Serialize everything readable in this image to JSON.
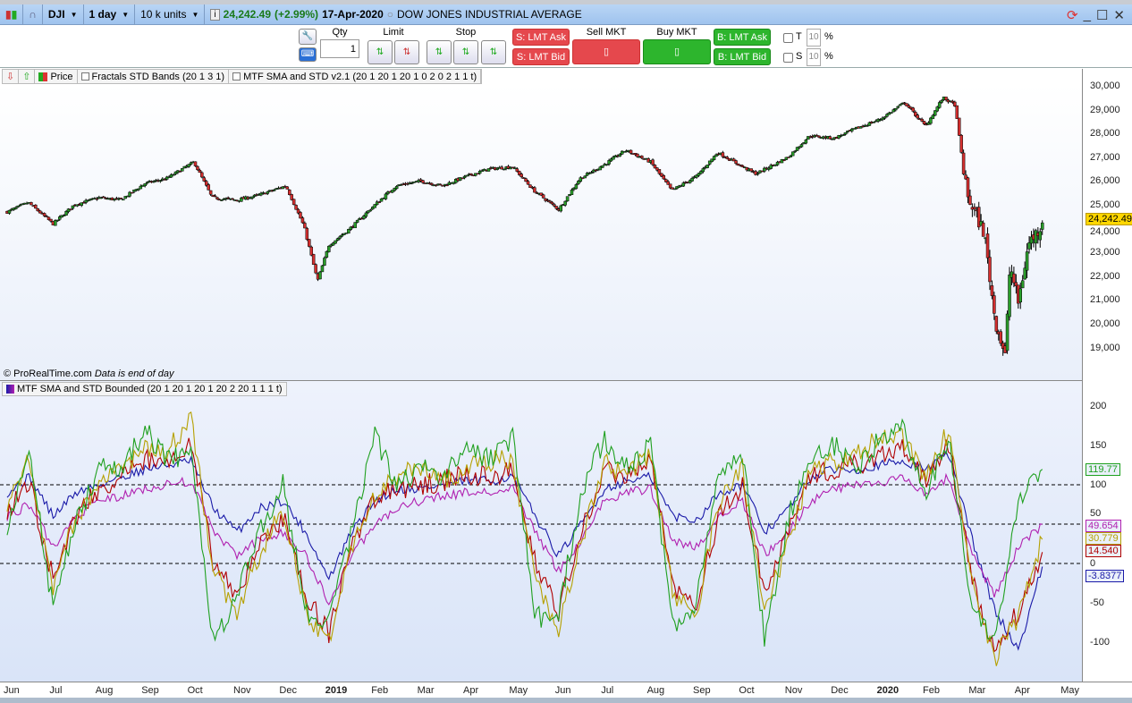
{
  "header": {
    "symbol": "DJI",
    "period": "1 day",
    "units": "10 k units",
    "price": "24,242.49",
    "change": "(+2.99%)",
    "date": "17-Apr-2020",
    "name": "DOW JONES INDUSTRIAL AVERAGE"
  },
  "toolbar": {
    "qty_label": "Qty",
    "qty_value": "1",
    "limit_label": "Limit",
    "stop_label": "Stop",
    "s_lmt_ask": "S: LMT Ask",
    "s_lmt_bid": "S: LMT Bid",
    "sell_mkt": "Sell MKT",
    "buy_mkt": "Buy MKT",
    "b_lmt_ask": "B: LMT Ask",
    "b_lmt_bid": "B: LMT Bid",
    "t_label": "T",
    "t_value": "10",
    "s_label": "S",
    "s_value": "10",
    "pct": "%"
  },
  "legend": {
    "price": "Price",
    "fractals": "Fractals STD Bands (20 1 3 1)",
    "mtf": "MTF SMA and STD v2.1 (20 1 20 1 20 1 0 2 0 2 1 1 t)",
    "indicator": "MTF SMA and STD Bounded (20 1 20 1 20 1 20 2 20 1 1 1 t)"
  },
  "copyright": "© ProRealTime.com",
  "eod_note": "Data is end of day",
  "colors": {
    "up": "#2a9d2a",
    "down": "#d32f2f",
    "green": "#1fa01f",
    "blue": "#1a1aa8",
    "olive": "#b5a000",
    "red": "#b00000",
    "magenta": "#b020b0",
    "last_price_bg": "#ffd700"
  },
  "chart_data": [
    {
      "type": "candlestick",
      "title": "DJI",
      "ylim": [
        18000,
        30500
      ],
      "yticks": [
        "30,000",
        "29,000",
        "28,000",
        "27,000",
        "26,000",
        "25,000",
        "24,000",
        "23,000",
        "22,000",
        "21,000",
        "20,000",
        "19,000"
      ],
      "last_label": "24,242.49",
      "x": [
        "2018-06-01",
        "2018-06-15",
        "2018-07-01",
        "2018-07-15",
        "2018-08-01",
        "2018-08-15",
        "2018-09-01",
        "2018-09-15",
        "2018-10-03",
        "2018-10-15",
        "2018-11-01",
        "2018-11-15",
        "2018-12-03",
        "2018-12-15",
        "2018-12-24",
        "2019-01-01",
        "2019-01-15",
        "2019-02-01",
        "2019-02-15",
        "2019-03-01",
        "2019-03-15",
        "2019-04-01",
        "2019-04-15",
        "2019-05-01",
        "2019-05-15",
        "2019-06-01",
        "2019-06-15",
        "2019-07-01",
        "2019-07-15",
        "2019-08-01",
        "2019-08-15",
        "2019-09-01",
        "2019-09-15",
        "2019-10-01",
        "2019-10-10",
        "2019-10-31",
        "2019-11-15",
        "2019-12-01",
        "2019-12-15",
        "2020-01-01",
        "2020-01-17",
        "2020-01-31",
        "2020-02-12",
        "2020-02-20",
        "2020-02-28",
        "2020-03-09",
        "2020-03-16",
        "2020-03-23",
        "2020-03-26",
        "2020-04-01",
        "2020-04-08",
        "2020-04-14",
        "2020-04-17"
      ],
      "close": [
        24700,
        25100,
        24200,
        25000,
        25300,
        25200,
        25900,
        26100,
        26800,
        25300,
        25200,
        25400,
        25800,
        24100,
        21800,
        23300,
        24000,
        25000,
        25800,
        26000,
        25800,
        26200,
        26500,
        26600,
        25600,
        24800,
        26100,
        26700,
        27300,
        26800,
        25600,
        26200,
        27200,
        26600,
        26300,
        27000,
        27900,
        27800,
        28200,
        28600,
        29300,
        28300,
        29500,
        29200,
        25400,
        23800,
        20200,
        18600,
        22500,
        20900,
        23400,
        23900,
        24242.49
      ]
    },
    {
      "type": "line",
      "ylim": [
        -140,
        210
      ],
      "yticks": [
        "200",
        "150",
        "100",
        "50",
        "0",
        "-50",
        "-100"
      ],
      "reference_lines": [
        100,
        50,
        0
      ],
      "x": [
        "2018-06-01",
        "2018-06-16",
        "2018-07-01",
        "2018-07-16",
        "2018-08-01",
        "2018-08-16",
        "2018-09-01",
        "2018-09-16",
        "2018-10-01",
        "2018-10-16",
        "2018-11-01",
        "2018-11-16",
        "2018-12-01",
        "2018-12-16",
        "2019-01-01",
        "2019-01-16",
        "2019-02-01",
        "2019-02-16",
        "2019-03-01",
        "2019-03-16",
        "2019-04-01",
        "2019-04-16",
        "2019-05-01",
        "2019-05-16",
        "2019-06-01",
        "2019-06-16",
        "2019-07-01",
        "2019-07-16",
        "2019-08-01",
        "2019-08-16",
        "2019-09-01",
        "2019-09-16",
        "2019-10-01",
        "2019-10-16",
        "2019-11-01",
        "2019-11-16",
        "2019-12-01",
        "2019-12-16",
        "2020-01-01",
        "2020-01-16",
        "2020-02-01",
        "2020-02-16",
        "2020-03-01",
        "2020-03-16",
        "2020-04-01",
        "2020-04-17"
      ],
      "series": [
        {
          "color": "#1a1aa8",
          "last": "-3.8377",
          "values": [
            90,
            110,
            60,
            90,
            100,
            110,
            120,
            125,
            130,
            70,
            40,
            70,
            80,
            40,
            -20,
            40,
            80,
            95,
            95,
            100,
            105,
            105,
            110,
            60,
            10,
            50,
            95,
            105,
            110,
            60,
            55,
            90,
            100,
            40,
            70,
            110,
            120,
            120,
            125,
            130,
            120,
            140,
            30,
            -60,
            -110,
            -3.8377
          ]
        },
        {
          "color": "#b020b0",
          "last": "49.654",
          "values": [
            60,
            75,
            20,
            60,
            80,
            85,
            95,
            100,
            105,
            40,
            10,
            30,
            40,
            10,
            -50,
            10,
            50,
            70,
            80,
            85,
            90,
            90,
            95,
            40,
            -10,
            30,
            80,
            90,
            95,
            30,
            20,
            60,
            80,
            10,
            40,
            80,
            95,
            100,
            100,
            110,
            90,
            110,
            10,
            -40,
            20,
            49.654
          ]
        },
        {
          "color": "#b00000",
          "last": "14.540",
          "values": [
            70,
            100,
            -20,
            60,
            95,
            110,
            130,
            130,
            150,
            0,
            -40,
            20,
            60,
            -40,
            -90,
            20,
            80,
            95,
            100,
            105,
            115,
            110,
            120,
            0,
            -60,
            40,
            120,
            110,
            130,
            -30,
            -50,
            60,
            100,
            -40,
            40,
            110,
            120,
            125,
            140,
            150,
            100,
            150,
            -20,
            -110,
            -60,
            14.54
          ]
        },
        {
          "color": "#b5a000",
          "last": "30.779",
          "values": [
            80,
            130,
            -30,
            60,
            100,
            120,
            150,
            140,
            190,
            -10,
            -60,
            10,
            70,
            -60,
            -100,
            20,
            90,
            110,
            120,
            105,
            120,
            130,
            130,
            -20,
            -80,
            30,
            130,
            110,
            140,
            -40,
            -60,
            80,
            120,
            -60,
            30,
            120,
            130,
            140,
            160,
            160,
            110,
            170,
            -30,
            -120,
            -70,
            30.779
          ]
        },
        {
          "color": "#1fa01f",
          "last": "119.77",
          "values": [
            50,
            140,
            -60,
            50,
            120,
            120,
            170,
            130,
            140,
            -100,
            -40,
            40,
            100,
            -60,
            -70,
            40,
            160,
            100,
            120,
            110,
            150,
            130,
            160,
            -70,
            -60,
            90,
            160,
            120,
            150,
            -80,
            -50,
            120,
            140,
            -100,
            60,
            130,
            150,
            120,
            160,
            170,
            90,
            160,
            -60,
            -100,
            80,
            119.77
          ]
        }
      ]
    },
    {
      "type": "axis",
      "xticks": [
        "Jun",
        "Jul",
        "Aug",
        "Sep",
        "Oct",
        "Nov",
        "Dec",
        "2019",
        "Feb",
        "Mar",
        "Apr",
        "May",
        "Jun",
        "Jul",
        "Aug",
        "Sep",
        "Oct",
        "Nov",
        "Dec",
        "2020",
        "Feb",
        "Mar",
        "Apr",
        "May"
      ]
    }
  ]
}
